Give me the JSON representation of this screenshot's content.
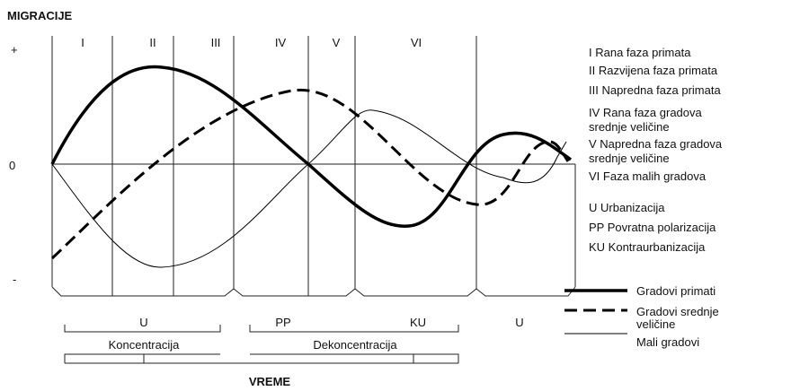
{
  "title": "MIGRACIJE",
  "axis": {
    "plus": "+",
    "zero": "0",
    "minus": "-",
    "x_label": "VREME"
  },
  "phases": [
    "I",
    "II",
    "III",
    "IV",
    "V",
    "VI"
  ],
  "phase_legend": [
    "I Rana faza primata",
    "II Razvijena faza primata",
    "III Napredna faza primata",
    [
      "IV  Rana faza gradova",
      "srednje veličine"
    ],
    [
      "V Napredna faza gradova",
      "srednje veličine"
    ],
    "VI Faza malih gradova"
  ],
  "stage_legend": [
    "U Urbanizacija",
    "PP Povratna polarizacija",
    "KU Kontraurbanizacija"
  ],
  "line_legend": [
    "Gradovi primati",
    [
      "Gradovi srednje",
      "veličine"
    ],
    "Mali gradovi"
  ],
  "stages": [
    "U",
    "PP",
    "KU",
    "U"
  ],
  "periods": [
    "Koncentracija",
    "Dekoncentracija"
  ]
}
